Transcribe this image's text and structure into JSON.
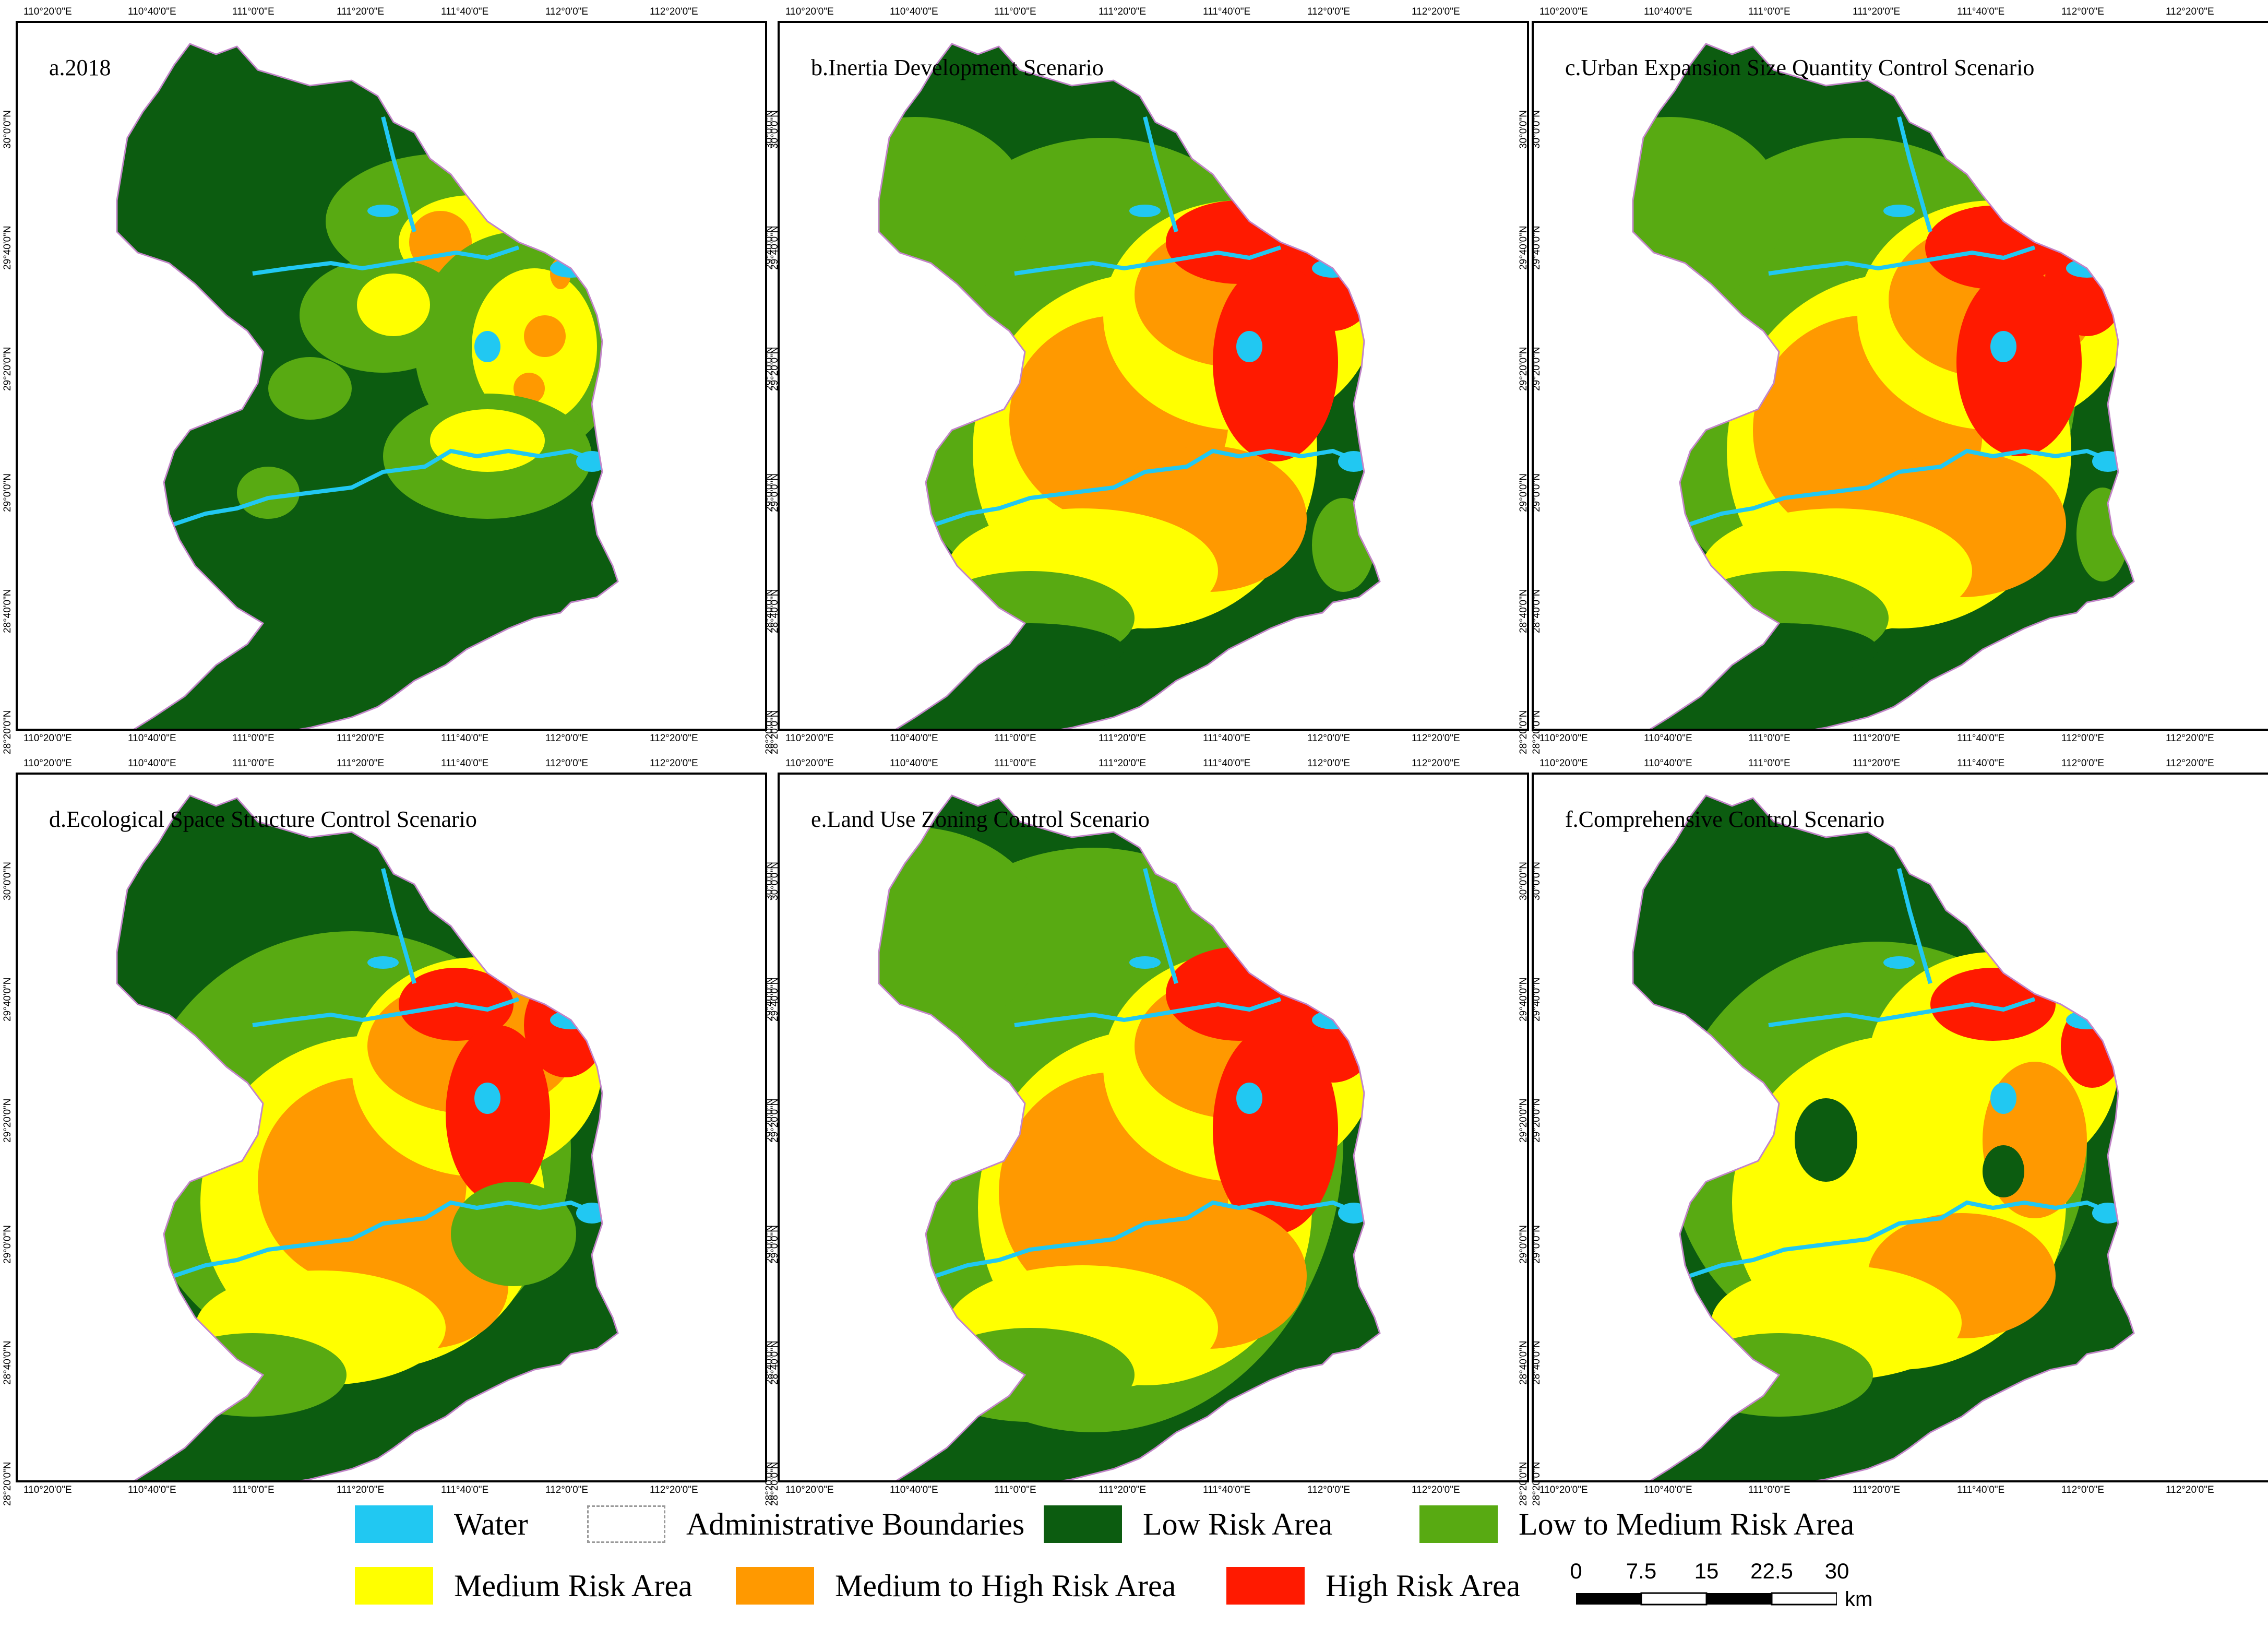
{
  "panels": [
    {
      "id": "a",
      "title": "a.2018",
      "scheme": "2018"
    },
    {
      "id": "b",
      "title": "b.Inertia Development Scenario",
      "scheme": "inertia"
    },
    {
      "id": "c",
      "title": "c.Urban Expansion Size Quantity Control Scenario",
      "scheme": "urban"
    },
    {
      "id": "d",
      "title": "d.Ecological Space Structure Control Scenario",
      "scheme": "ecological"
    },
    {
      "id": "e",
      "title": "e.Land Use Zoning Control Scenario",
      "scheme": "zoning"
    },
    {
      "id": "f",
      "title": "f.Comprehensive Control Scenario",
      "scheme": "comprehensive"
    }
  ],
  "lon_ticks": [
    "110°20'0\"E",
    "110°40'0\"E",
    "111°0'0\"E",
    "111°20'0\"E",
    "111°40'0\"E",
    "112°0'0\"E",
    "112°20'0\"E"
  ],
  "lat_ticks": [
    "30°0'0\"N",
    "29°40'0\"N",
    "29°20'0\"N",
    "29°0'0\"N",
    "28°40'0\"N",
    "28°20'0\"N"
  ],
  "legend": [
    {
      "label": "Water",
      "color": "#21c8f2"
    },
    {
      "label": "Administrative Boundaries",
      "color": "#ffffff"
    },
    {
      "label": "Low Risk Area",
      "color": "#0c5c10"
    },
    {
      "label": "Low to Medium Risk Area",
      "color": "#58aa12"
    },
    {
      "label": "Medium Risk Area",
      "color": "#ffff00"
    },
    {
      "label": "Medium to High Risk Area",
      "color": "#ff9900"
    },
    {
      "label": "High Risk Area",
      "color": "#ff1a00"
    }
  ],
  "scale": {
    "ticks": [
      "0",
      "7.5",
      "15",
      "22.5",
      "30"
    ],
    "unit": "km"
  },
  "colors": {
    "water": "#21c8f2",
    "low": "#0c5c10",
    "low_medium": "#58aa12",
    "medium": "#ffff00",
    "medium_high": "#ff9900",
    "high": "#ff1a00",
    "border": "#c285c9"
  }
}
